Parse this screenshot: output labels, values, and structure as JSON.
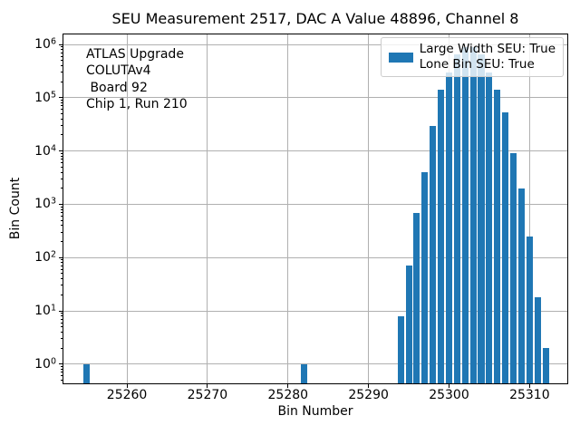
{
  "title": "SEU Measurement 2517, DAC A Value 48896, Channel 8",
  "annotation": {
    "lines": [
      "ATLAS Upgrade",
      "COLUTAv4",
      " Board 92",
      "Chip 1, Run 210"
    ]
  },
  "legend": {
    "entries": [
      "Large Width SEU: True",
      "Lone Bin SEU: True"
    ],
    "swatch_color": "#1f77b4",
    "position": "upper right"
  },
  "chart_data": {
    "type": "bar",
    "title": "SEU Measurement 2517, DAC A Value 48896, Channel 8",
    "xlabel": "Bin Number",
    "ylabel": "Bin Count",
    "yscale": "log",
    "grid": true,
    "bar_color": "#1f77b4",
    "bar_width": 0.8,
    "gridline_color": "#b0b0b0",
    "x": [
      25255,
      25282,
      25294,
      25295,
      25296,
      25297,
      25298,
      25299,
      25300,
      25301,
      25302,
      25303,
      25304,
      25305,
      25306,
      25307,
      25308,
      25309,
      25310,
      25311,
      25312
    ],
    "values": [
      1,
      1,
      8,
      70,
      700,
      4000,
      30000,
      140000,
      300000,
      650000,
      880000,
      880000,
      650000,
      300000,
      140000,
      53000,
      9000,
      2000,
      250,
      18,
      2
    ],
    "xticks": [
      25260,
      25270,
      25280,
      25290,
      25300,
      25310
    ],
    "yticks_exponents": [
      0,
      1,
      2,
      3,
      4,
      5,
      6
    ],
    "xlim": [
      25252.0,
      25314.8
    ],
    "ylim": [
      0.42,
      1600000
    ]
  }
}
